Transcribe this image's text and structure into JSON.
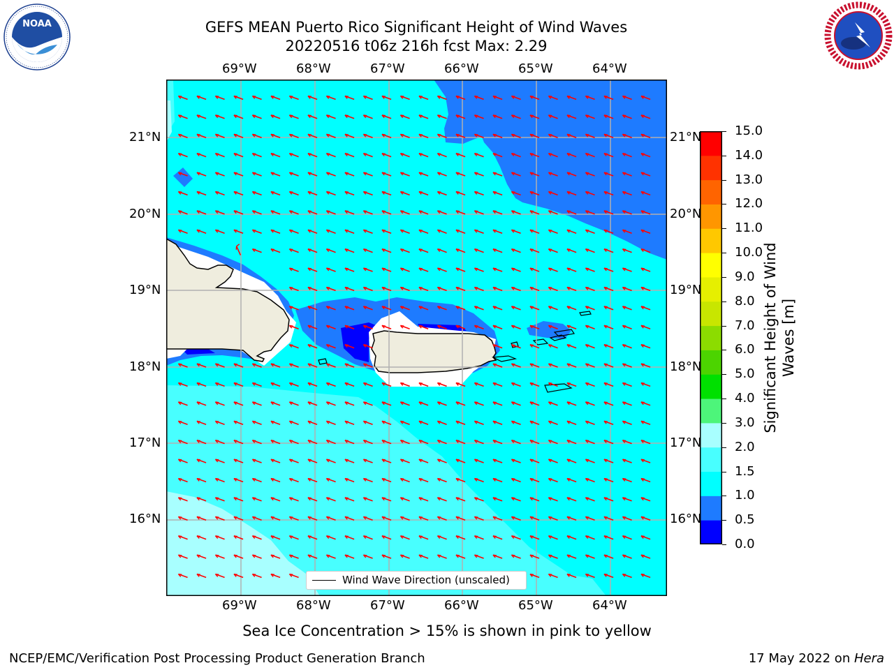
{
  "title_line1": "GEFS MEAN Puerto Rico Significant Height of Wind Waves",
  "title_line2": "20220516 t06z 216h fcst   Max: 2.29",
  "lon_labels": [
    "69°W",
    "68°W",
    "67°W",
    "66°W",
    "65°W",
    "64°W"
  ],
  "lat_labels": [
    "21°N",
    "20°N",
    "19°N",
    "18°N",
    "17°N",
    "16°N"
  ],
  "colorbar": {
    "label": "Significant Height of Wind Waves [m]",
    "ticks": [
      "0.0",
      "0.5",
      "1.0",
      "1.5",
      "2.0",
      "3.0",
      "4.0",
      "5.0",
      "6.0",
      "7.0",
      "8.0",
      "9.0",
      "10.0",
      "11.0",
      "12.0",
      "13.0",
      "14.0",
      "15.0"
    ],
    "colors": [
      "#0000ff",
      "#1e7bff",
      "#00ffff",
      "#48ffff",
      "#a8ffff",
      "#4df57a",
      "#00e000",
      "#4cd400",
      "#8cdc00",
      "#c8e600",
      "#e6ef00",
      "#ffff00",
      "#ffc800",
      "#ff9600",
      "#ff6400",
      "#ff3200",
      "#ff0000"
    ]
  },
  "legend_label": "Wind Wave Direction (unscaled)",
  "sea_ice_note": "Sea Ice Concentration > 15% is shown in pink to yellow",
  "footer_left": "NCEP/EMC/Verification Post Processing Product Generation Branch",
  "footer_date": "17 May 2022 on ",
  "footer_machine": "Hera",
  "logos": {
    "noaa": "NOAA",
    "nws": "NATIONAL WEATHER SERVICE"
  },
  "map_colors": {
    "land": "#efedde",
    "deep_blue": "#1e7bff",
    "blue": "#0000ff",
    "cyan": "#00ffff",
    "light_cyan": "#48ffff",
    "pale_cyan": "#a8ffff",
    "arrow": "#ff0000",
    "grid": "#b0b0b0"
  }
}
